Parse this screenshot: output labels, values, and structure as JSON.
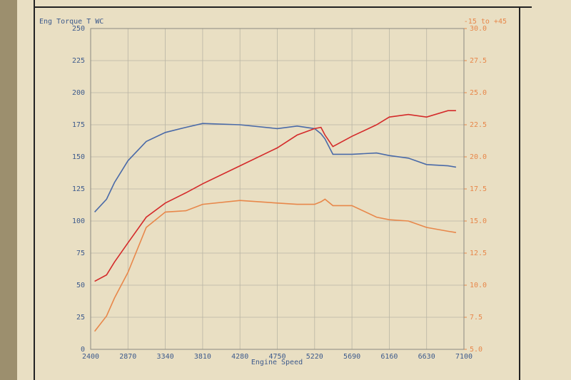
{
  "chart_data": {
    "type": "line",
    "y_label": "Eng Torque T WC",
    "y2_label": "-15 to +45",
    "x_label": "Engine Speed",
    "x": [
      2450,
      2600,
      2700,
      2870,
      3100,
      3340,
      3600,
      3810,
      4280,
      4750,
      5000,
      5220,
      5300,
      5350,
      5450,
      5690,
      6000,
      6160,
      6400,
      6630,
      6900,
      7000
    ],
    "series": [
      {
        "color": "#4a6aa8",
        "values": [
          107,
          117,
          130,
          147,
          162,
          169,
          173,
          176,
          175,
          172,
          174,
          172,
          168,
          164,
          152,
          152,
          153,
          151,
          149,
          144,
          143,
          142
        ]
      },
      {
        "color": "#d42a2a",
        "values": [
          53,
          58,
          68,
          83,
          103,
          114,
          122,
          129,
          143,
          157,
          167,
          172,
          173,
          167,
          158,
          166,
          175,
          181,
          183,
          181,
          186,
          186
        ]
      },
      {
        "color": "#e8874a",
        "axis": "y2",
        "values": [
          6.4,
          7.6,
          9.0,
          11.0,
          14.5,
          15.7,
          15.8,
          16.3,
          16.6,
          16.4,
          16.3,
          16.3,
          16.5,
          16.7,
          16.2,
          16.2,
          15.3,
          15.1,
          15.0,
          14.5,
          14.2,
          14.1
        ]
      }
    ],
    "xlim": [
      2400,
      7100
    ],
    "xticks": [
      2400,
      2870,
      3340,
      3810,
      4280,
      4750,
      5220,
      5690,
      6160,
      6630,
      7100
    ],
    "ylim": [
      0,
      250
    ],
    "yticks": [
      0,
      25,
      50,
      75,
      100,
      125,
      150,
      175,
      200,
      225,
      250
    ],
    "y2lim": [
      5,
      30
    ],
    "y2ticks": [
      {
        "value": 5,
        "label": "5.0"
      },
      7.5,
      {
        "value": 10,
        "label": "10.0"
      },
      12.5,
      {
        "value": 15,
        "label": "15.0"
      },
      17.5,
      {
        "value": 20,
        "label": "20.0"
      },
      22.5,
      {
        "value": 25,
        "label": "25.0"
      },
      27.5,
      {
        "value": 30,
        "label": "30.0"
      }
    ],
    "y2_color": "#e8874a",
    "grid": true
  }
}
